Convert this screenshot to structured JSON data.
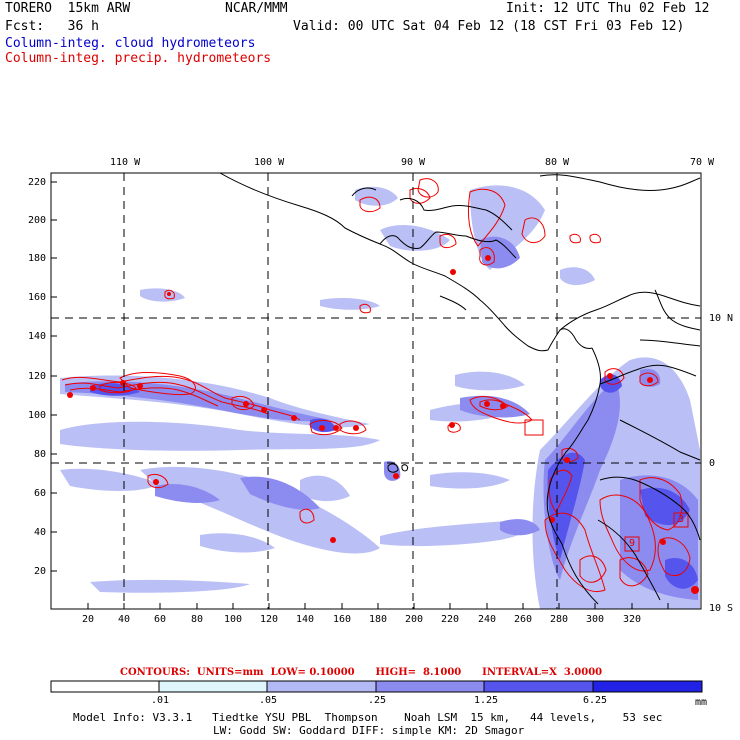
{
  "header": {
    "model": "TORERO  15km ARW",
    "org": "NCAR/MMM",
    "init": "Init: 12 UTC Thu 02 Feb 12",
    "fcst": "Fcst:   36 h",
    "valid": "Valid: 00 UTC Sat 04 Feb 12 (18 CST Fri 03 Feb 12)",
    "field_cloud": "Column-integ. cloud hydrometeors",
    "field_precip": "Column-integ. precip. hydrometeors"
  },
  "map": {
    "top_lon_labels": [
      "110 W",
      "100 W",
      "90 W",
      "80 W",
      "70 W"
    ],
    "right_lat_labels": [
      "10 N",
      "0",
      "10 S"
    ],
    "y_ticks": [
      "220",
      "200",
      "180",
      "160",
      "140",
      "120",
      "100",
      "80",
      "60",
      "40",
      "20"
    ],
    "x_ticks": [
      "20",
      "40",
      "60",
      "80",
      "100",
      "120",
      "140",
      "160",
      "180",
      "200",
      "220",
      "240",
      "260",
      "280",
      "300",
      "320"
    ],
    "box_labels": [
      "3",
      "9"
    ],
    "colors": {
      "cloud": "#6666ee",
      "precip": "#ee0000",
      "coast": "#000000"
    }
  },
  "contours": {
    "text": "CONTOURS:  UNITS=mm  LOW= 0.10000      HIGH=  8.1000      INTERVAL=X  3.0000"
  },
  "colorbar": {
    "labels": [
      ".01",
      ".05",
      ".25",
      "1.25",
      "6.25"
    ],
    "units": "mm",
    "colors": [
      "#ffffff",
      "#ddf5fb",
      "#b3b9f4",
      "#8c8cf0",
      "#5555ee",
      "#2222e6"
    ]
  },
  "footer": {
    "line1": "Model Info: V3.3.1   Tiedtke YSU PBL  Thompson    Noah LSM  15 km,   44 levels,    53 sec",
    "line2": "LW: Godd SW: Goddard DIFF: simple KM: 2D Smagor"
  }
}
